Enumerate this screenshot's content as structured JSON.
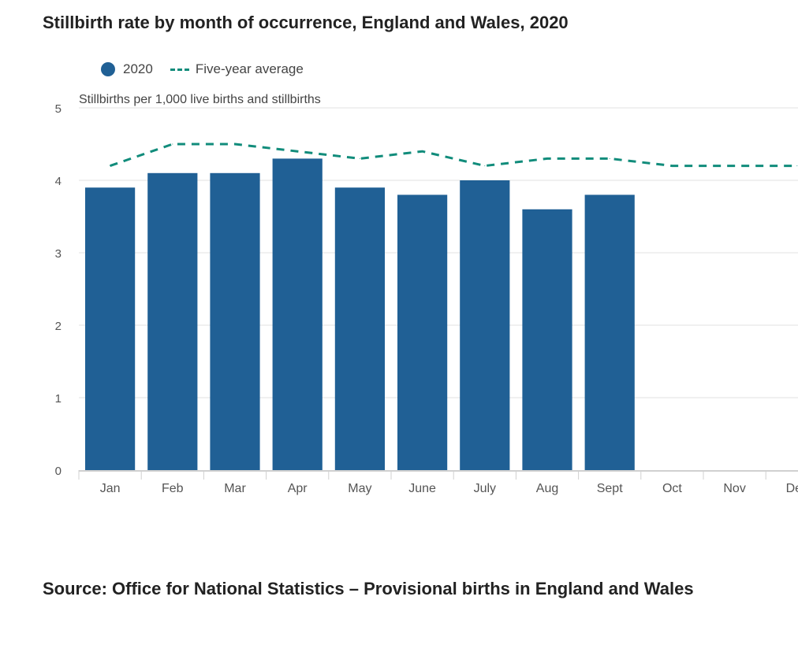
{
  "title": "Stillbirth rate by month of occurrence, England and Wales, 2020",
  "legend": {
    "series_2020": "2020",
    "series_avg": "Five-year average"
  },
  "colors": {
    "bar": "#206095",
    "average": "#118c7b",
    "grid": "#e0e0e0",
    "axis": "#d0d0d0",
    "tick_text": "#555555"
  },
  "chart_data": {
    "type": "bar",
    "ylabel": "Stillbirths per 1,000 live births and stillbirths",
    "ylim": [
      0,
      5
    ],
    "yticks": [
      0,
      1,
      2,
      3,
      4,
      5
    ],
    "grid": true,
    "legend_position": "top-left",
    "categories": [
      "Jan",
      "Feb",
      "Mar",
      "Apr",
      "May",
      "June",
      "July",
      "Aug",
      "Sept",
      "Oct",
      "Nov",
      "Dec"
    ],
    "series": [
      {
        "name": "2020",
        "type": "bar",
        "values": [
          3.9,
          4.1,
          4.1,
          4.3,
          3.9,
          3.8,
          4.0,
          3.6,
          3.8,
          null,
          null,
          null
        ]
      },
      {
        "name": "Five-year average",
        "type": "line",
        "style": "dashed",
        "values": [
          4.2,
          4.5,
          4.5,
          4.4,
          4.3,
          4.4,
          4.2,
          4.3,
          4.3,
          4.2,
          4.2,
          4.2
        ]
      }
    ]
  },
  "source": "Source: Office for National Statistics – Provisional births in England and Wales"
}
